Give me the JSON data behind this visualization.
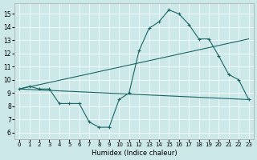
{
  "xlabel": "Humidex (Indice chaleur)",
  "xlim": [
    -0.5,
    23.5
  ],
  "ylim": [
    5.5,
    15.8
  ],
  "xticks": [
    0,
    1,
    2,
    3,
    4,
    5,
    6,
    7,
    8,
    9,
    10,
    11,
    12,
    13,
    14,
    15,
    16,
    17,
    18,
    19,
    20,
    21,
    22,
    23
  ],
  "yticks": [
    6,
    7,
    8,
    9,
    10,
    11,
    12,
    13,
    14,
    15
  ],
  "bg_color": "#cce8e8",
  "line_color": "#1a6666",
  "line1_x": [
    0,
    1,
    2,
    3,
    4,
    5,
    6,
    7,
    8,
    9,
    10,
    11,
    12,
    13,
    14,
    15,
    16,
    17,
    18,
    19,
    20,
    21,
    22,
    23
  ],
  "line1_y": [
    9.3,
    9.5,
    9.3,
    9.3,
    8.2,
    8.2,
    8.2,
    6.8,
    6.4,
    6.4,
    8.5,
    9.0,
    12.2,
    13.9,
    14.4,
    15.3,
    15.0,
    14.2,
    13.1,
    13.1,
    11.8,
    10.4,
    10.0,
    8.5
  ],
  "line2_x": [
    0,
    23
  ],
  "line2_y": [
    9.3,
    13.1
  ],
  "line3_x": [
    0,
    23
  ],
  "line3_y": [
    9.3,
    8.5
  ]
}
